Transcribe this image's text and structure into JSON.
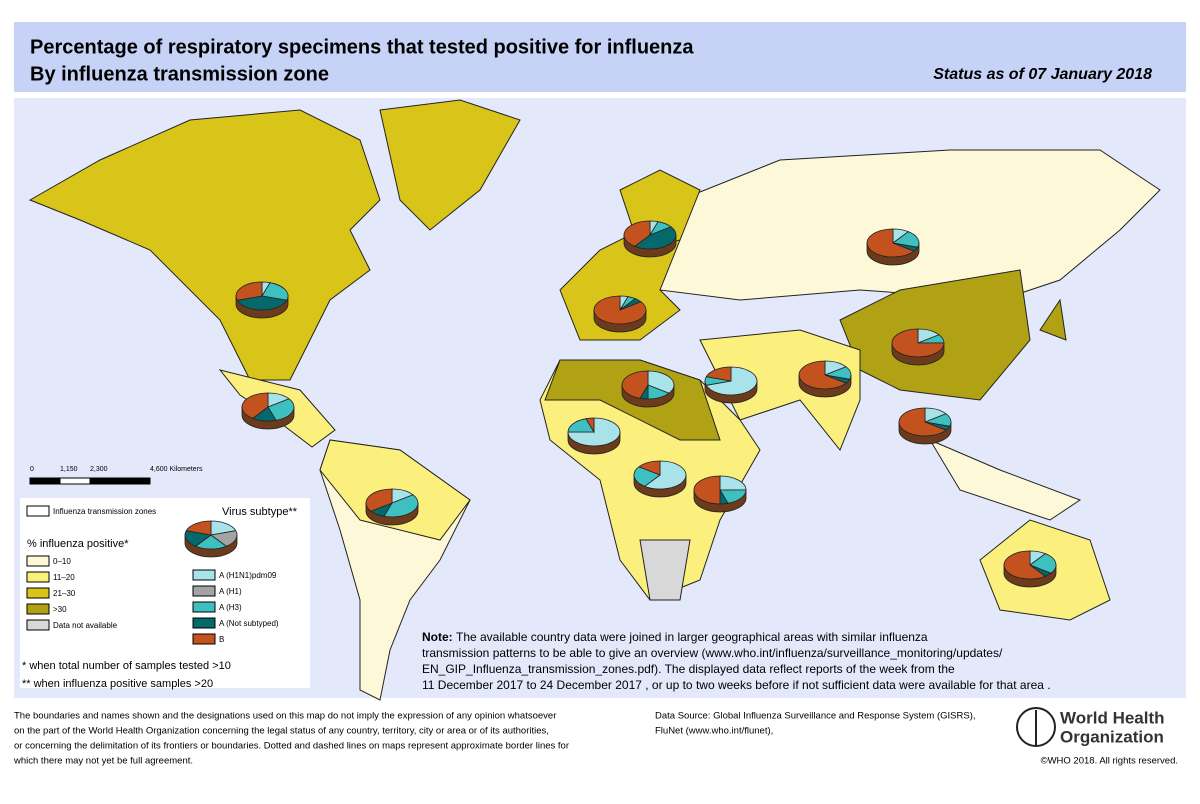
{
  "header": {
    "title_line1": "Percentage of respiratory specimens that tested positive for influenza",
    "title_line2": "By influenza transmission zone",
    "status": "Status as of 07 January 2018"
  },
  "scale_bar": {
    "labels": [
      "0",
      "1,150",
      "2,300",
      "4,600 Kilometers"
    ]
  },
  "legend": {
    "zones_label": "Influenza transmission zones",
    "positive_title": "% influenza positive*",
    "positive_items": [
      {
        "label": "0–10",
        "color": "#fcf8d8"
      },
      {
        "label": "11–20",
        "color": "#fbf07e"
      },
      {
        "label": "21–30",
        "color": "#d9c419"
      },
      {
        "label": ">30",
        "color": "#b0a214"
      },
      {
        "label": "Data not available",
        "color": "#d8d8d8"
      }
    ],
    "subtype_title": "Virus subtype**",
    "subtype_items": [
      {
        "label": "A (H1N1)pdm09",
        "color": "#a9e3ea"
      },
      {
        "label": "A (H1)",
        "color": "#a3a3a3"
      },
      {
        "label": "A (H3)",
        "color": "#3ebfc0"
      },
      {
        "label": "A (Not subtyped)",
        "color": "#05696c"
      },
      {
        "label": "B",
        "color": "#c4521e"
      }
    ],
    "footnotes": [
      "*   when total number of samples tested >10",
      "** when influenza positive samples >20"
    ]
  },
  "pies": [
    [
      5,
      0,
      25,
      40,
      30
    ],
    [
      15,
      0,
      30,
      15,
      40
    ],
    [
      15,
      0,
      40,
      10,
      35
    ],
    [
      5,
      0,
      10,
      45,
      40
    ],
    [
      5,
      0,
      5,
      5,
      85
    ],
    [
      10,
      0,
      20,
      5,
      65
    ],
    [
      15,
      0,
      10,
      0,
      75
    ],
    [
      35,
      0,
      15,
      5,
      45
    ],
    [
      70,
      0,
      10,
      0,
      20
    ],
    [
      15,
      0,
      15,
      5,
      65
    ],
    [
      15,
      0,
      15,
      5,
      65
    ],
    [
      75,
      0,
      20,
      0,
      5
    ],
    [
      60,
      0,
      25,
      0,
      15
    ],
    [
      25,
      0,
      20,
      5,
      50
    ],
    [
      10,
      0,
      25,
      5,
      60
    ]
  ],
  "note": {
    "label": "Note:",
    "lines": [
      " The available country data were joined in larger geographical areas with similar influenza",
      "transmission patterns to be able to give an overview (www.who.int/influenza/surveillance_monitoring/updates/",
      "EN_GIP_Influenza_transmission_zones.pdf). The displayed data reflect reports of the week from the",
      "11 December 2017 to 24 December 2017 , or up to two weeks before if not sufficient data were available for that area ."
    ]
  },
  "footer": {
    "disclaimer": [
      "The boundaries and names shown and the designations used on this map do not imply the expression of any opinion whatsoever",
      "on the part of the World Health Organization concerning the legal status of any country, territory, city or area or of its authorities,",
      "or concerning the delimitation of its frontiers or boundaries. Dotted and dashed lines on maps represent approximate border lines for",
      "which there may not yet be full agreement."
    ],
    "data_source": [
      "Data Source: Global Influenza Surveillance and Response System (GISRS),",
      "FluNet (www.who.int/flunet),"
    ],
    "logo": [
      "World Health",
      "Organization"
    ],
    "copyright": "©WHO 2018. All rights reserved."
  }
}
